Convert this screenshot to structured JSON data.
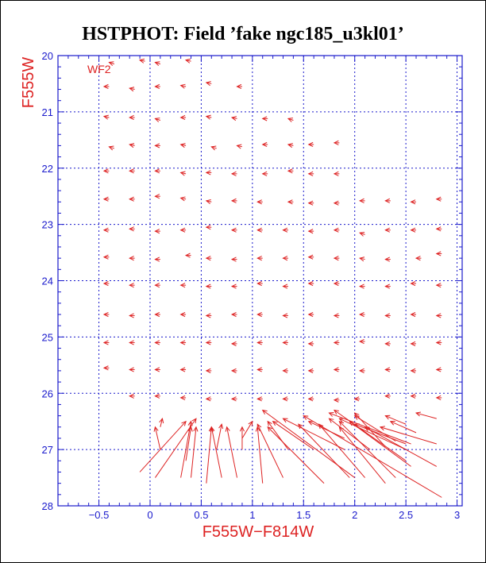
{
  "chart_data": {
    "type": "vector-field",
    "title": "HSTPHOT: Field ’fake ngc185_u3kl01’",
    "xlabel": "F555W−F814W",
    "ylabel": "F555W",
    "annotation": "WF2",
    "xlim": [
      -0.9,
      3.05
    ],
    "ylim": [
      28,
      20
    ],
    "y_inverted": true,
    "grid": true,
    "x_ticks": [
      {
        "value": -0.5,
        "label": "−0.5"
      },
      {
        "value": 0,
        "label": "0"
      },
      {
        "value": 0.5,
        "label": "0.5"
      },
      {
        "value": 1,
        "label": "1"
      },
      {
        "value": 1.5,
        "label": "1.5"
      },
      {
        "value": 2,
        "label": "2"
      },
      {
        "value": 2.5,
        "label": "2.5"
      },
      {
        "value": 3,
        "label": "3"
      }
    ],
    "y_ticks": [
      {
        "value": 20,
        "label": "20"
      },
      {
        "value": 21,
        "label": "21"
      },
      {
        "value": 22,
        "label": "22"
      },
      {
        "value": 23,
        "label": "23"
      },
      {
        "value": 24,
        "label": "24"
      },
      {
        "value": 25,
        "label": "25"
      },
      {
        "value": 26,
        "label": "26"
      },
      {
        "value": 27,
        "label": "27"
      },
      {
        "value": 28,
        "label": "28"
      }
    ],
    "colors": {
      "frame": "#1a1acc",
      "vectors": "#dd2222",
      "title": "#000000"
    },
    "vectors": [
      {
        "x0": -0.35,
        "y0": 20.15,
        "x1": -0.4,
        "y1": 20.12
      },
      {
        "x0": -0.05,
        "y0": 20.1,
        "x1": -0.1,
        "y1": 20.08
      },
      {
        "x0": 0.1,
        "y0": 20.15,
        "x1": 0.05,
        "y1": 20.12
      },
      {
        "x0": 0.4,
        "y0": 20.1,
        "x1": 0.35,
        "y1": 20.08
      },
      {
        "x0": -0.4,
        "y0": 20.55,
        "x1": -0.45,
        "y1": 20.55
      },
      {
        "x0": -0.15,
        "y0": 20.6,
        "x1": -0.2,
        "y1": 20.58
      },
      {
        "x0": 0.1,
        "y0": 20.55,
        "x1": 0.05,
        "y1": 20.55
      },
      {
        "x0": 0.35,
        "y0": 20.55,
        "x1": 0.3,
        "y1": 20.53
      },
      {
        "x0": 0.6,
        "y0": 20.5,
        "x1": 0.55,
        "y1": 20.48
      },
      {
        "x0": 0.9,
        "y0": 20.55,
        "x1": 0.85,
        "y1": 20.55
      },
      {
        "x0": -0.4,
        "y0": 21.1,
        "x1": -0.45,
        "y1": 21.08
      },
      {
        "x0": -0.15,
        "y0": 21.1,
        "x1": -0.2,
        "y1": 21.1
      },
      {
        "x0": 0.1,
        "y0": 21.15,
        "x1": 0.05,
        "y1": 21.12
      },
      {
        "x0": 0.35,
        "y0": 21.1,
        "x1": 0.3,
        "y1": 21.1
      },
      {
        "x0": 0.6,
        "y0": 21.1,
        "x1": 0.55,
        "y1": 21.08
      },
      {
        "x0": 0.85,
        "y0": 21.12,
        "x1": 0.8,
        "y1": 21.1
      },
      {
        "x0": 1.15,
        "y0": 21.12,
        "x1": 1.1,
        "y1": 21.12
      },
      {
        "x0": 1.4,
        "y0": 21.15,
        "x1": 1.35,
        "y1": 21.12
      },
      {
        "x0": -0.35,
        "y0": 21.65,
        "x1": -0.4,
        "y1": 21.62
      },
      {
        "x0": -0.15,
        "y0": 21.6,
        "x1": -0.2,
        "y1": 21.58
      },
      {
        "x0": 0.1,
        "y0": 21.6,
        "x1": 0.05,
        "y1": 21.6
      },
      {
        "x0": 0.35,
        "y0": 21.6,
        "x1": 0.3,
        "y1": 21.58
      },
      {
        "x0": 0.65,
        "y0": 21.65,
        "x1": 0.6,
        "y1": 21.62
      },
      {
        "x0": 0.9,
        "y0": 21.62,
        "x1": 0.85,
        "y1": 21.6
      },
      {
        "x0": 1.15,
        "y0": 21.58,
        "x1": 1.1,
        "y1": 21.58
      },
      {
        "x0": 1.4,
        "y0": 21.6,
        "x1": 1.35,
        "y1": 21.58
      },
      {
        "x0": 1.6,
        "y0": 21.58,
        "x1": 1.55,
        "y1": 21.58
      },
      {
        "x0": 1.85,
        "y0": 21.55,
        "x1": 1.8,
        "y1": 21.55
      },
      {
        "x0": -0.4,
        "y0": 22.05,
        "x1": -0.45,
        "y1": 22.05
      },
      {
        "x0": -0.15,
        "y0": 22.05,
        "x1": -0.2,
        "y1": 22.05
      },
      {
        "x0": 0.1,
        "y0": 22.05,
        "x1": 0.05,
        "y1": 22.05
      },
      {
        "x0": 0.35,
        "y0": 22.1,
        "x1": 0.3,
        "y1": 22.08
      },
      {
        "x0": 0.6,
        "y0": 22.08,
        "x1": 0.55,
        "y1": 22.08
      },
      {
        "x0": 0.85,
        "y0": 22.1,
        "x1": 0.8,
        "y1": 22.1
      },
      {
        "x0": 1.15,
        "y0": 22.1,
        "x1": 1.1,
        "y1": 22.1
      },
      {
        "x0": 1.4,
        "y0": 22.05,
        "x1": 1.35,
        "y1": 22.05
      },
      {
        "x0": 1.6,
        "y0": 22.1,
        "x1": 1.55,
        "y1": 22.1
      },
      {
        "x0": 1.85,
        "y0": 22.1,
        "x1": 1.8,
        "y1": 22.1
      },
      {
        "x0": -0.4,
        "y0": 22.55,
        "x1": -0.45,
        "y1": 22.55
      },
      {
        "x0": -0.15,
        "y0": 22.55,
        "x1": -0.2,
        "y1": 22.55
      },
      {
        "x0": 0.1,
        "y0": 22.5,
        "x1": 0.05,
        "y1": 22.5
      },
      {
        "x0": 0.35,
        "y0": 22.55,
        "x1": 0.3,
        "y1": 22.53
      },
      {
        "x0": 0.6,
        "y0": 22.6,
        "x1": 0.55,
        "y1": 22.58
      },
      {
        "x0": 0.85,
        "y0": 22.58,
        "x1": 0.8,
        "y1": 22.58
      },
      {
        "x0": 1.1,
        "y0": 22.6,
        "x1": 1.05,
        "y1": 22.6
      },
      {
        "x0": 1.4,
        "y0": 22.6,
        "x1": 1.35,
        "y1": 22.6
      },
      {
        "x0": 1.6,
        "y0": 22.62,
        "x1": 1.55,
        "y1": 22.62
      },
      {
        "x0": 1.85,
        "y0": 22.62,
        "x1": 1.8,
        "y1": 22.62
      },
      {
        "x0": 2.1,
        "y0": 22.58,
        "x1": 2.05,
        "y1": 22.58
      },
      {
        "x0": 2.35,
        "y0": 22.58,
        "x1": 2.3,
        "y1": 22.58
      },
      {
        "x0": 2.6,
        "y0": 22.6,
        "x1": 2.55,
        "y1": 22.6
      },
      {
        "x0": 2.85,
        "y0": 22.55,
        "x1": 2.8,
        "y1": 22.55
      },
      {
        "x0": -0.4,
        "y0": 23.1,
        "x1": -0.45,
        "y1": 23.1
      },
      {
        "x0": -0.15,
        "y0": 23.08,
        "x1": -0.2,
        "y1": 23.08
      },
      {
        "x0": 0.1,
        "y0": 23.12,
        "x1": 0.05,
        "y1": 23.12
      },
      {
        "x0": 0.35,
        "y0": 23.1,
        "x1": 0.3,
        "y1": 23.1
      },
      {
        "x0": 0.6,
        "y0": 23.05,
        "x1": 0.55,
        "y1": 23.05
      },
      {
        "x0": 0.85,
        "y0": 23.1,
        "x1": 0.8,
        "y1": 23.1
      },
      {
        "x0": 1.1,
        "y0": 23.1,
        "x1": 1.05,
        "y1": 23.1
      },
      {
        "x0": 1.35,
        "y0": 23.1,
        "x1": 1.3,
        "y1": 23.1
      },
      {
        "x0": 1.6,
        "y0": 23.12,
        "x1": 1.55,
        "y1": 23.12
      },
      {
        "x0": 1.85,
        "y0": 23.1,
        "x1": 1.8,
        "y1": 23.1
      },
      {
        "x0": 2.1,
        "y0": 23.18,
        "x1": 2.05,
        "y1": 23.15
      },
      {
        "x0": 2.35,
        "y0": 23.1,
        "x1": 2.3,
        "y1": 23.1
      },
      {
        "x0": 2.6,
        "y0": 23.1,
        "x1": 2.55,
        "y1": 23.1
      },
      {
        "x0": 2.85,
        "y0": 23.08,
        "x1": 2.8,
        "y1": 23.08
      },
      {
        "x0": -0.4,
        "y0": 23.58,
        "x1": -0.45,
        "y1": 23.58
      },
      {
        "x0": -0.15,
        "y0": 23.6,
        "x1": -0.2,
        "y1": 23.6
      },
      {
        "x0": 0.1,
        "y0": 23.62,
        "x1": 0.05,
        "y1": 23.62
      },
      {
        "x0": 0.4,
        "y0": 23.55,
        "x1": 0.35,
        "y1": 23.55
      },
      {
        "x0": 0.6,
        "y0": 23.6,
        "x1": 0.55,
        "y1": 23.6
      },
      {
        "x0": 0.85,
        "y0": 23.62,
        "x1": 0.8,
        "y1": 23.62
      },
      {
        "x0": 1.1,
        "y0": 23.6,
        "x1": 1.05,
        "y1": 23.6
      },
      {
        "x0": 1.35,
        "y0": 23.6,
        "x1": 1.3,
        "y1": 23.6
      },
      {
        "x0": 1.6,
        "y0": 23.58,
        "x1": 1.55,
        "y1": 23.58
      },
      {
        "x0": 1.85,
        "y0": 23.6,
        "x1": 1.8,
        "y1": 23.6
      },
      {
        "x0": 2.1,
        "y0": 23.62,
        "x1": 2.05,
        "y1": 23.6
      },
      {
        "x0": 2.35,
        "y0": 23.62,
        "x1": 2.3,
        "y1": 23.62
      },
      {
        "x0": 2.65,
        "y0": 23.6,
        "x1": 2.6,
        "y1": 23.6
      },
      {
        "x0": 2.85,
        "y0": 23.52,
        "x1": 2.8,
        "y1": 23.52
      },
      {
        "x0": -0.4,
        "y0": 24.05,
        "x1": -0.45,
        "y1": 24.05
      },
      {
        "x0": -0.15,
        "y0": 24.08,
        "x1": -0.2,
        "y1": 24.08
      },
      {
        "x0": 0.1,
        "y0": 24.08,
        "x1": 0.05,
        "y1": 24.08
      },
      {
        "x0": 0.35,
        "y0": 24.08,
        "x1": 0.3,
        "y1": 24.08
      },
      {
        "x0": 0.6,
        "y0": 24.1,
        "x1": 0.55,
        "y1": 24.1
      },
      {
        "x0": 0.85,
        "y0": 24.1,
        "x1": 0.8,
        "y1": 24.1
      },
      {
        "x0": 1.1,
        "y0": 24.05,
        "x1": 1.05,
        "y1": 24.05
      },
      {
        "x0": 1.35,
        "y0": 24.1,
        "x1": 1.3,
        "y1": 24.1
      },
      {
        "x0": 1.6,
        "y0": 24.05,
        "x1": 1.55,
        "y1": 24.05
      },
      {
        "x0": 1.85,
        "y0": 24.05,
        "x1": 1.8,
        "y1": 24.05
      },
      {
        "x0": 2.1,
        "y0": 24.1,
        "x1": 2.05,
        "y1": 24.1
      },
      {
        "x0": 2.35,
        "y0": 24.1,
        "x1": 2.3,
        "y1": 24.1
      },
      {
        "x0": 2.6,
        "y0": 24.05,
        "x1": 2.55,
        "y1": 24.05
      },
      {
        "x0": 2.85,
        "y0": 24.08,
        "x1": 2.8,
        "y1": 24.08
      },
      {
        "x0": -0.4,
        "y0": 24.6,
        "x1": -0.45,
        "y1": 24.6
      },
      {
        "x0": -0.15,
        "y0": 24.62,
        "x1": -0.2,
        "y1": 24.62
      },
      {
        "x0": 0.1,
        "y0": 24.6,
        "x1": 0.05,
        "y1": 24.6
      },
      {
        "x0": 0.35,
        "y0": 24.6,
        "x1": 0.3,
        "y1": 24.6
      },
      {
        "x0": 0.6,
        "y0": 24.62,
        "x1": 0.55,
        "y1": 24.62
      },
      {
        "x0": 0.85,
        "y0": 24.6,
        "x1": 0.8,
        "y1": 24.6
      },
      {
        "x0": 1.1,
        "y0": 24.6,
        "x1": 1.05,
        "y1": 24.6
      },
      {
        "x0": 1.35,
        "y0": 24.62,
        "x1": 1.3,
        "y1": 24.62
      },
      {
        "x0": 1.6,
        "y0": 24.6,
        "x1": 1.55,
        "y1": 24.6
      },
      {
        "x0": 1.85,
        "y0": 24.62,
        "x1": 1.8,
        "y1": 24.62
      },
      {
        "x0": 2.1,
        "y0": 24.6,
        "x1": 2.05,
        "y1": 24.6
      },
      {
        "x0": 2.35,
        "y0": 24.62,
        "x1": 2.3,
        "y1": 24.62
      },
      {
        "x0": 2.6,
        "y0": 24.6,
        "x1": 2.55,
        "y1": 24.6
      },
      {
        "x0": 2.85,
        "y0": 24.62,
        "x1": 2.8,
        "y1": 24.62
      },
      {
        "x0": -0.4,
        "y0": 25.1,
        "x1": -0.45,
        "y1": 25.1
      },
      {
        "x0": -0.15,
        "y0": 25.1,
        "x1": -0.2,
        "y1": 25.1
      },
      {
        "x0": 0.1,
        "y0": 25.1,
        "x1": 0.05,
        "y1": 25.1
      },
      {
        "x0": 0.35,
        "y0": 25.1,
        "x1": 0.3,
        "y1": 25.1
      },
      {
        "x0": 0.6,
        "y0": 25.1,
        "x1": 0.55,
        "y1": 25.1
      },
      {
        "x0": 0.85,
        "y0": 25.12,
        "x1": 0.8,
        "y1": 25.12
      },
      {
        "x0": 1.1,
        "y0": 25.1,
        "x1": 1.05,
        "y1": 25.1
      },
      {
        "x0": 1.35,
        "y0": 25.1,
        "x1": 1.3,
        "y1": 25.1
      },
      {
        "x0": 1.6,
        "y0": 25.12,
        "x1": 1.55,
        "y1": 25.12
      },
      {
        "x0": 1.85,
        "y0": 25.1,
        "x1": 1.8,
        "y1": 25.1
      },
      {
        "x0": 2.1,
        "y0": 25.08,
        "x1": 2.05,
        "y1": 25.08
      },
      {
        "x0": 2.35,
        "y0": 25.12,
        "x1": 2.3,
        "y1": 25.12
      },
      {
        "x0": 2.6,
        "y0": 25.12,
        "x1": 2.55,
        "y1": 25.12
      },
      {
        "x0": 2.85,
        "y0": 25.1,
        "x1": 2.8,
        "y1": 25.1
      },
      {
        "x0": -0.4,
        "y0": 25.55,
        "x1": -0.45,
        "y1": 25.55
      },
      {
        "x0": -0.15,
        "y0": 25.58,
        "x1": -0.2,
        "y1": 25.58
      },
      {
        "x0": 0.1,
        "y0": 25.58,
        "x1": 0.05,
        "y1": 25.58
      },
      {
        "x0": 0.35,
        "y0": 25.58,
        "x1": 0.3,
        "y1": 25.58
      },
      {
        "x0": 0.6,
        "y0": 25.6,
        "x1": 0.55,
        "y1": 25.6
      },
      {
        "x0": 0.85,
        "y0": 25.6,
        "x1": 0.8,
        "y1": 25.6
      },
      {
        "x0": 1.1,
        "y0": 25.58,
        "x1": 1.05,
        "y1": 25.58
      },
      {
        "x0": 1.35,
        "y0": 25.6,
        "x1": 1.3,
        "y1": 25.6
      },
      {
        "x0": 1.6,
        "y0": 25.6,
        "x1": 1.55,
        "y1": 25.6
      },
      {
        "x0": 1.85,
        "y0": 25.58,
        "x1": 1.8,
        "y1": 25.58
      },
      {
        "x0": 2.1,
        "y0": 25.6,
        "x1": 2.05,
        "y1": 25.6
      },
      {
        "x0": 2.35,
        "y0": 25.58,
        "x1": 2.3,
        "y1": 25.58
      },
      {
        "x0": 2.6,
        "y0": 25.6,
        "x1": 2.55,
        "y1": 25.6
      },
      {
        "x0": 2.85,
        "y0": 25.58,
        "x1": 2.8,
        "y1": 25.58
      },
      {
        "x0": -0.15,
        "y0": 26.05,
        "x1": -0.2,
        "y1": 26.05
      },
      {
        "x0": 0.1,
        "y0": 26.05,
        "x1": 0.05,
        "y1": 26.05
      },
      {
        "x0": 0.35,
        "y0": 26.08,
        "x1": 0.3,
        "y1": 26.08
      },
      {
        "x0": 0.6,
        "y0": 26.1,
        "x1": 0.55,
        "y1": 26.1
      },
      {
        "x0": 0.85,
        "y0": 26.1,
        "x1": 0.8,
        "y1": 26.1
      },
      {
        "x0": 1.1,
        "y0": 26.1,
        "x1": 1.05,
        "y1": 26.1
      },
      {
        "x0": 1.35,
        "y0": 26.1,
        "x1": 1.3,
        "y1": 26.1
      },
      {
        "x0": 1.6,
        "y0": 26.1,
        "x1": 1.55,
        "y1": 26.1
      },
      {
        "x0": 1.85,
        "y0": 26.12,
        "x1": 1.8,
        "y1": 26.12
      },
      {
        "x0": 2.05,
        "y0": 26.1,
        "x1": 2.0,
        "y1": 26.1
      },
      {
        "x0": 2.35,
        "y0": 26.05,
        "x1": 2.3,
        "y1": 26.05
      },
      {
        "x0": 2.6,
        "y0": 26.05,
        "x1": 2.55,
        "y1": 26.05
      },
      {
        "x0": 2.85,
        "y0": 26.08,
        "x1": 2.8,
        "y1": 26.08
      },
      {
        "x0": -0.1,
        "y0": 27.4,
        "x1": 0.35,
        "y1": 26.5
      },
      {
        "x0": 0.05,
        "y0": 27.5,
        "x1": 0.45,
        "y1": 26.45
      },
      {
        "x0": 0.1,
        "y0": 27.0,
        "x1": 0.05,
        "y1": 26.6
      },
      {
        "x0": 0.1,
        "y0": 26.6,
        "x1": 0.12,
        "y1": 26.45
      },
      {
        "x0": 0.3,
        "y0": 27.5,
        "x1": 0.4,
        "y1": 26.5
      },
      {
        "x0": 0.35,
        "y0": 27.2,
        "x1": 0.4,
        "y1": 26.6
      },
      {
        "x0": 0.4,
        "y0": 27.5,
        "x1": 0.45,
        "y1": 26.6
      },
      {
        "x0": 0.55,
        "y0": 27.6,
        "x1": 0.6,
        "y1": 26.6
      },
      {
        "x0": 0.7,
        "y0": 27.5,
        "x1": 0.6,
        "y1": 26.6
      },
      {
        "x0": 0.65,
        "y0": 27.0,
        "x1": 0.7,
        "y1": 26.55
      },
      {
        "x0": 0.85,
        "y0": 27.5,
        "x1": 0.75,
        "y1": 26.6
      },
      {
        "x0": 0.9,
        "y0": 27.0,
        "x1": 0.9,
        "y1": 26.6
      },
      {
        "x0": 0.9,
        "y0": 26.8,
        "x1": 1.0,
        "y1": 26.5
      },
      {
        "x0": 1.1,
        "y0": 27.6,
        "x1": 1.05,
        "y1": 26.6
      },
      {
        "x0": 1.3,
        "y0": 27.5,
        "x1": 1.05,
        "y1": 26.55
      },
      {
        "x0": 1.35,
        "y0": 27.0,
        "x1": 1.15,
        "y1": 26.5
      },
      {
        "x0": 1.7,
        "y0": 27.6,
        "x1": 1.15,
        "y1": 26.6
      },
      {
        "x0": 1.6,
        "y0": 27.0,
        "x1": 1.2,
        "y1": 26.5
      },
      {
        "x0": 1.95,
        "y0": 27.5,
        "x1": 1.45,
        "y1": 26.55
      },
      {
        "x0": 1.9,
        "y0": 27.0,
        "x1": 1.3,
        "y1": 26.45
      },
      {
        "x0": 1.9,
        "y0": 26.8,
        "x1": 1.55,
        "y1": 26.5
      },
      {
        "x0": 2.1,
        "y0": 27.5,
        "x1": 1.65,
        "y1": 26.55
      },
      {
        "x0": 2.15,
        "y0": 27.0,
        "x1": 1.75,
        "y1": 26.45
      },
      {
        "x0": 2.3,
        "y0": 27.6,
        "x1": 1.85,
        "y1": 26.6
      },
      {
        "x0": 2.4,
        "y0": 27.5,
        "x1": 1.85,
        "y1": 26.5
      },
      {
        "x0": 2.55,
        "y0": 27.3,
        "x1": 1.95,
        "y1": 26.5
      },
      {
        "x0": 2.5,
        "y0": 27.0,
        "x1": 1.85,
        "y1": 26.45
      },
      {
        "x0": 2.5,
        "y0": 26.9,
        "x1": 2.0,
        "y1": 26.55
      },
      {
        "x0": 2.8,
        "y0": 27.3,
        "x1": 2.1,
        "y1": 26.6
      },
      {
        "x0": 2.8,
        "y0": 26.9,
        "x1": 2.25,
        "y1": 26.6
      },
      {
        "x0": 2.6,
        "y0": 26.7,
        "x1": 2.35,
        "y1": 26.5
      },
      {
        "x0": 2.85,
        "y0": 27.85,
        "x1": 1.5,
        "y1": 26.4
      },
      {
        "x0": 2.0,
        "y0": 27.5,
        "x1": 1.1,
        "y1": 26.3
      },
      {
        "x0": 2.5,
        "y0": 27.2,
        "x1": 1.8,
        "y1": 26.3
      },
      {
        "x0": 2.55,
        "y0": 26.9,
        "x1": 1.75,
        "y1": 26.35
      },
      {
        "x0": 2.3,
        "y0": 26.95,
        "x1": 2.0,
        "y1": 26.35
      },
      {
        "x0": 2.4,
        "y0": 26.85,
        "x1": 2.0,
        "y1": 26.4
      },
      {
        "x0": 2.5,
        "y0": 26.55,
        "x1": 2.3,
        "y1": 26.4
      },
      {
        "x0": 2.8,
        "y0": 26.45,
        "x1": 2.6,
        "y1": 26.35
      }
    ]
  }
}
